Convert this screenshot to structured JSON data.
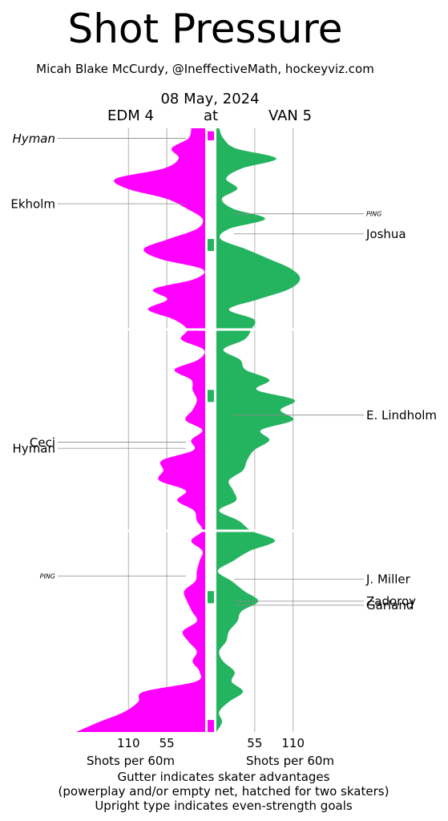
{
  "chart_data": {
    "type": "area",
    "title": "Shot Pressure",
    "subtitle": "Micah Blake McCurdy, @IneffectiveMath, hockeyviz.com",
    "date": "08 May, 2024",
    "away_label": "EDM 4",
    "at_label": "at",
    "home_label": "VAN 5",
    "xlabel_left": "Shots per 60m",
    "xlabel_right": "Shots per 60m",
    "x_ticks": [
      110,
      55
    ],
    "x_range": [
      0,
      190
    ],
    "periods": 3,
    "period_minutes": 20,
    "colors": {
      "away": "#ff00ff",
      "home": "#24b45f",
      "grid": "#b0b0b0"
    },
    "series": [
      {
        "name": "EDM 4",
        "minutes": [
          0,
          1,
          2,
          3,
          4,
          5,
          6,
          7,
          8,
          9,
          10,
          11,
          12,
          13,
          14,
          15,
          16,
          17,
          18,
          19,
          20,
          21,
          22,
          23,
          24,
          25,
          26,
          27,
          28,
          29,
          30,
          31,
          32,
          33,
          34,
          35,
          36,
          37,
          38,
          39,
          40,
          41,
          42,
          43,
          44,
          45,
          46,
          47,
          48,
          49,
          50,
          51,
          52,
          53,
          54,
          55,
          56,
          57,
          58,
          59,
          60
        ],
        "values": [
          20,
          24,
          48,
          38,
          60,
          128,
          112,
          56,
          26,
          4,
          12,
          52,
          88,
          64,
          4,
          16,
          74,
          54,
          82,
          45,
          26,
          34,
          2,
          10,
          44,
          20,
          18,
          12,
          18,
          28,
          4,
          20,
          17,
          62,
          60,
          66,
          28,
          40,
          16,
          12,
          4,
          20,
          4,
          8,
          12,
          14,
          30,
          26,
          19,
          12,
          32,
          24,
          12,
          18,
          8,
          14,
          88,
          96,
          116,
          152,
          185
        ]
      },
      {
        "name": "VAN 5",
        "minutes": [
          0,
          1,
          2,
          3,
          4,
          5,
          6,
          7,
          8,
          9,
          10,
          11,
          12,
          13,
          14,
          15,
          16,
          17,
          18,
          19,
          20,
          21,
          22,
          23,
          24,
          25,
          26,
          27,
          28,
          29,
          30,
          31,
          32,
          33,
          34,
          35,
          36,
          37,
          38,
          39,
          40,
          41,
          42,
          43,
          44,
          45,
          46,
          47,
          48,
          49,
          50,
          51,
          52,
          53,
          54,
          55,
          56,
          57,
          58,
          59,
          60
        ],
        "values": [
          4,
          10,
          28,
          86,
          36,
          14,
          30,
          8,
          24,
          70,
          18,
          6,
          42,
          76,
          108,
          120,
          104,
          60,
          18,
          54,
          50,
          40,
          10,
          34,
          42,
          76,
          58,
          112,
          92,
          110,
          64,
          76,
          54,
          44,
          38,
          18,
          24,
          28,
          4,
          32,
          50,
          84,
          48,
          24,
          2,
          22,
          40,
          60,
          36,
          30,
          18,
          14,
          4,
          10,
          26,
          22,
          38,
          18,
          4,
          8,
          0
        ]
      }
    ],
    "annotations_left": [
      {
        "label": "Hyman",
        "minute": 1.0,
        "italic": true
      },
      {
        "label": "Ekholm",
        "minute": 7.5,
        "italic": false
      },
      {
        "label": "Ceci",
        "minute": 31.2,
        "italic": false
      },
      {
        "label": "Hyman",
        "minute": 31.8,
        "italic": false
      },
      {
        "label": "PING",
        "minute": 44.5,
        "italic": true
      }
    ],
    "annotations_right": [
      {
        "label": "PING",
        "minute": 8.5,
        "italic": true
      },
      {
        "label": "Joshua",
        "minute": 10.5,
        "italic": false
      },
      {
        "label": "E. Lindholm",
        "minute": 28.5,
        "italic": false
      },
      {
        "label": "J. Miller",
        "minute": 44.8,
        "italic": false
      },
      {
        "label": "Zadoroy",
        "minute": 47.0,
        "italic": false
      },
      {
        "label": "Garland",
        "minute": 47.4,
        "italic": false
      }
    ],
    "gutter_marks": [
      {
        "start": 0.3,
        "end": 1.2,
        "color": "#ff00ff"
      },
      {
        "start": 11.0,
        "end": 12.2,
        "color": "#24b45f"
      },
      {
        "start": 26.0,
        "end": 27.2,
        "color": "#24b45f"
      },
      {
        "start": 46.0,
        "end": 47.2,
        "color": "#24b45f"
      },
      {
        "start": 58.8,
        "end": 60.0,
        "color": "#ff00ff"
      }
    ],
    "footnotes": [
      "Gutter indicates skater advantages",
      "(powerplay and/or empty net, hatched for two skaters)",
      "Upright type indicates even-strength goals"
    ]
  }
}
